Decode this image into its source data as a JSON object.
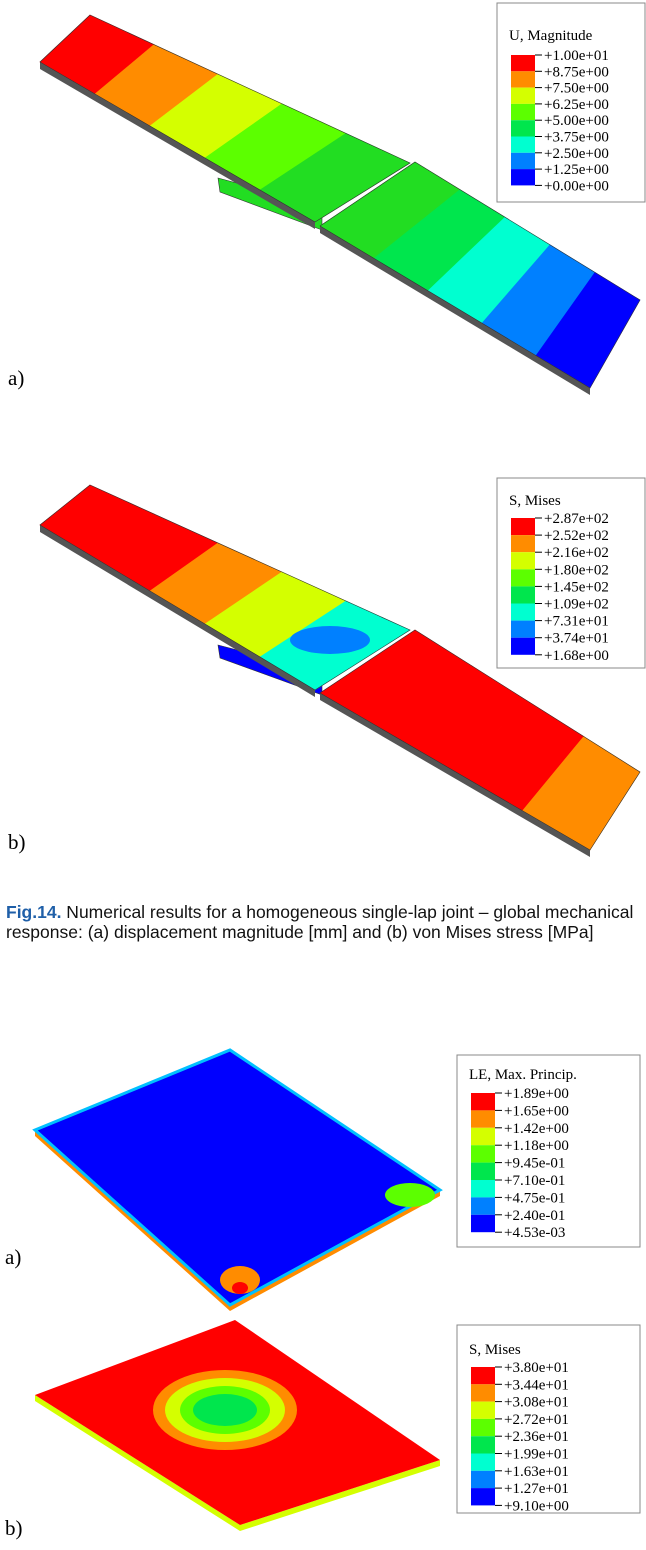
{
  "panels": [
    {
      "label": "a)",
      "legend": {
        "title": "U, Magnitude",
        "values": [
          "+1.00e+01",
          "+8.75e+00",
          "+7.50e+00",
          "+6.25e+00",
          "+5.00e+00",
          "+3.75e+00",
          "+2.50e+00",
          "+1.25e+00",
          "+0.00e+00"
        ]
      }
    },
    {
      "label": "b)",
      "legend": {
        "title": "S, Mises",
        "values": [
          "+2.87e+02",
          "+2.52e+02",
          "+2.16e+02",
          "+1.80e+02",
          "+1.45e+02",
          "+1.09e+02",
          "+7.31e+01",
          "+3.74e+01",
          "+1.68e+00"
        ]
      }
    },
    {
      "label": "a)",
      "legend": {
        "title": "LE, Max. Princip.",
        "values": [
          "+1.89e+00",
          "+1.65e+00",
          "+1.42e+00",
          "+1.18e+00",
          "+9.45e-01",
          "+7.10e-01",
          "+4.75e-01",
          "+2.40e-01",
          "+4.53e-03"
        ]
      }
    },
    {
      "label": "b)",
      "legend": {
        "title": "S, Mises",
        "values": [
          "+3.80e+01",
          "+3.44e+01",
          "+3.08e+01",
          "+2.72e+01",
          "+2.36e+01",
          "+1.99e+01",
          "+1.63e+01",
          "+1.27e+01",
          "+9.10e+00"
        ]
      }
    }
  ],
  "caption": {
    "number": "Fig.14.",
    "text": " Numerical results for a homogeneous single-lap joint – global mechanical response: (a) displacement magnitude [mm] and (b) von Mises stress [MPa]"
  }
}
